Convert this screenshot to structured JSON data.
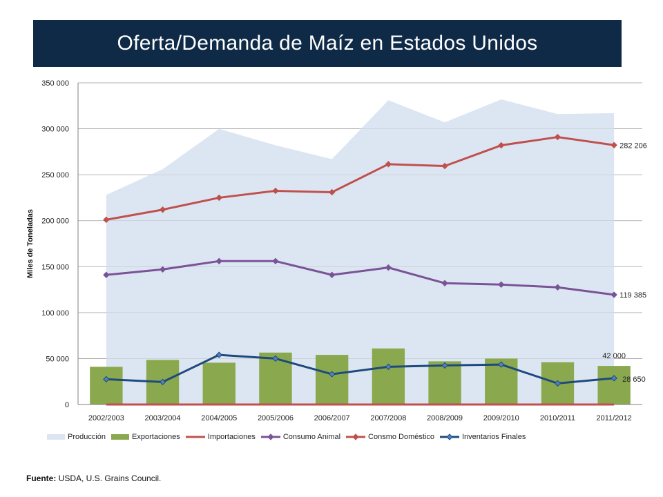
{
  "chart_data": {
    "type": "line",
    "title": "Oferta/Demanda de Maíz en Estados Unidos",
    "ylabel": "Miles de Toneladas",
    "xlabel": "",
    "ylim": [
      0,
      350000
    ],
    "yticks": [
      0,
      50000,
      100000,
      150000,
      200000,
      250000,
      300000,
      350000
    ],
    "ytick_labels": [
      "0",
      "50 000",
      "100 000",
      "150 000",
      "200 000",
      "250 000",
      "300 000",
      "350 000"
    ],
    "grid": true,
    "legend_position": "bottom",
    "categories": [
      "2002/2003",
      "2003/2004",
      "2004/2005",
      "2005/2006",
      "2006/2007",
      "2007/2008",
      "2008/2009",
      "2009/2010",
      "2010/2011",
      "2011/2012"
    ],
    "series": [
      {
        "name": "Producción",
        "kind": "area",
        "color": "#dce6f2",
        "values": [
          228000,
          256000,
          300000,
          282000,
          267000,
          331000,
          307000,
          332000,
          316000,
          317000
        ]
      },
      {
        "name": "Exportaciones",
        "kind": "bar",
        "color": "#8aa94e",
        "values": [
          41000,
          48500,
          45500,
          56500,
          54000,
          61000,
          47000,
          50000,
          46000,
          42000
        ]
      },
      {
        "name": "Importaciones",
        "kind": "line",
        "color": "#c0504d",
        "values": [
          0,
          0,
          0,
          0,
          0,
          0,
          0,
          0,
          0,
          0
        ]
      },
      {
        "name": "Consumo Animal",
        "kind": "line_marker",
        "color": "#7a5396",
        "values": [
          141000,
          147000,
          156000,
          156000,
          141000,
          149000,
          132000,
          130500,
          127500,
          119385
        ]
      },
      {
        "name": "Consmo Doméstico",
        "kind": "line_marker",
        "color": "#c0504d",
        "values": [
          201000,
          212000,
          225000,
          232500,
          231000,
          261500,
          259500,
          282000,
          291000,
          282206
        ]
      },
      {
        "name": "Inventarios Finales",
        "kind": "line_marker",
        "color": "#1f497d",
        "marker_fill": "#4f81bd",
        "values": [
          27500,
          24500,
          54000,
          50000,
          33000,
          41000,
          42500,
          43500,
          23000,
          28650
        ]
      }
    ],
    "data_labels": [
      {
        "series": "Consmo Doméstico",
        "index": 9,
        "text": "282 206"
      },
      {
        "series": "Consumo Animal",
        "index": 9,
        "text": "119 385"
      },
      {
        "series": "Exportaciones",
        "index": 9,
        "text": "42 000"
      },
      {
        "series": "Inventarios Finales",
        "index": 9,
        "text": "28 650"
      }
    ]
  },
  "source": {
    "label": "Fuente:",
    "text": " USDA, U.S. Grains Council."
  }
}
